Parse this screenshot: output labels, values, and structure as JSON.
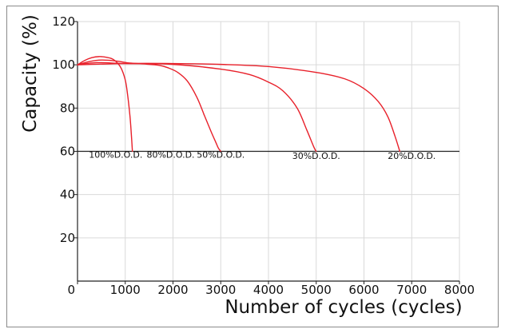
{
  "chart_data": {
    "type": "line",
    "title": "",
    "xlabel": "Number of cycles (cycles)",
    "ylabel": "Capacity  (%)",
    "xlim": [
      0,
      8000
    ],
    "ylim": [
      0,
      120
    ],
    "x_ticks": [
      0,
      1000,
      2000,
      3000,
      4000,
      5000,
      6000,
      7000,
      8000
    ],
    "y_ticks": [
      20,
      40,
      60,
      80,
      100,
      120
    ],
    "x_tick_labels": [
      "0",
      "1000",
      "2000",
      "3000",
      "4000",
      "5000",
      "6000",
      "7000",
      "8000"
    ],
    "y_tick_labels": [
      "20",
      "40",
      "60",
      "80",
      "100",
      "120"
    ],
    "grid": true,
    "reference_line_y": 60,
    "line_color": "#e8202a",
    "series": [
      {
        "name": "100%D.O.D.",
        "x": [
          0,
          150,
          300,
          450,
          600,
          750,
          900,
          1000,
          1050,
          1100,
          1130,
          1150
        ],
        "y": [
          100,
          102,
          103.3,
          103.8,
          103.5,
          102.5,
          99,
          93,
          86,
          76,
          67,
          60
        ]
      },
      {
        "name": "80%D.O.D.",
        "x": [
          0,
          250,
          500,
          800,
          1100,
          1400,
          1700,
          1900,
          2100,
          2300,
          2500,
          2650
        ],
        "y": [
          100,
          101.5,
          102.2,
          101.8,
          100.8,
          100.4,
          99.8,
          98.6,
          96.5,
          92.5,
          85,
          77
        ]
      },
      {
        "name": "50%D.O.D.",
        "x": [
          2650,
          2800,
          2900,
          2950,
          3000
        ],
        "y": [
          77,
          69,
          64,
          61.5,
          60
        ]
      },
      {
        "name": "30%D.O.D.",
        "x": [
          0,
          400,
          1000,
          2000,
          3000,
          3600,
          4000,
          4300,
          4600,
          4800,
          4950,
          5000
        ],
        "y": [
          100,
          101,
          100.6,
          100.2,
          98,
          95.5,
          92,
          88,
          80,
          70,
          62,
          60
        ]
      },
      {
        "name": "20%D.O.D.",
        "x": [
          0,
          1000,
          2000,
          3000,
          4000,
          5000,
          5600,
          6000,
          6300,
          6500,
          6650,
          6750
        ],
        "y": [
          100,
          100.6,
          100.6,
          100.2,
          99.2,
          96.5,
          93.5,
          89,
          83,
          76,
          67,
          60
        ]
      }
    ],
    "annotations": [
      {
        "text": "100%D.O.D.",
        "x": 800,
        "y": 57
      },
      {
        "text": "80%D.O.D.",
        "x": 1950,
        "y": 57
      },
      {
        "text": "50%D.O.D.",
        "x": 3000,
        "y": 57
      },
      {
        "text": "30%D.O.D.",
        "x": 5000,
        "y": 56.5
      },
      {
        "text": "20%D.O.D.",
        "x": 7000,
        "y": 56.5
      }
    ]
  }
}
